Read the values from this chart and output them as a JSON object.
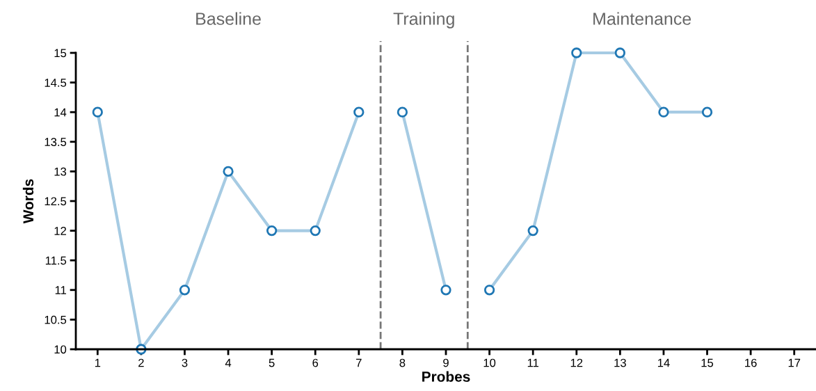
{
  "chart_data": {
    "type": "line",
    "xlabel": "Probes",
    "ylabel": "Words",
    "series": [
      {
        "color": "#a6cbe3",
        "x": [
          1,
          2,
          3,
          4,
          5,
          6,
          7
        ],
        "values": [
          14,
          10,
          11,
          13,
          12,
          12,
          14
        ]
      },
      {
        "color": "#a6cbe3",
        "x": [
          8,
          9
        ],
        "values": [
          14,
          11
        ]
      },
      {
        "color": "#a6cbe3",
        "x": [
          10,
          11,
          12,
          13,
          14,
          15
        ],
        "values": [
          11,
          12,
          15,
          15,
          14,
          14
        ]
      }
    ],
    "xlim": [
      0.5,
      17.5
    ],
    "xticks": [
      1,
      2,
      3,
      4,
      5,
      6,
      7,
      8,
      9,
      10,
      11,
      12,
      13,
      14,
      15,
      16,
      17
    ],
    "ylim": [
      10,
      15
    ],
    "yticks": [
      10,
      10.5,
      11,
      11.5,
      12,
      12.5,
      13,
      13.5,
      14,
      14.5,
      15
    ],
    "ref_lines": [
      {
        "axis": "x",
        "value": 7.5,
        "color": "#777777",
        "line_style": "dashed"
      },
      {
        "axis": "x",
        "value": 9.5,
        "color": "#777777",
        "line_style": "dashed"
      }
    ],
    "annotations": [
      "Baseline",
      "Training",
      "Maintenance"
    ],
    "marker": "circle",
    "line_style": "solid",
    "grid": false,
    "legend": false
  }
}
